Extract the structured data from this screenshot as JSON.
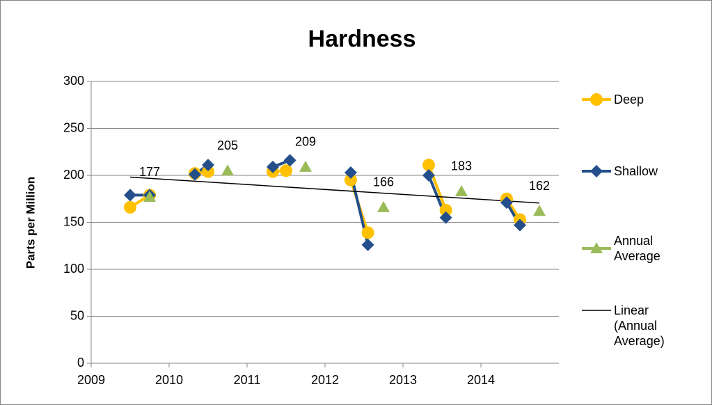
{
  "chart_data": {
    "type": "line",
    "title": "Hardness",
    "y_label": "Parts per Million",
    "xlim": [
      2009,
      2015
    ],
    "xticks": [
      2009,
      2010,
      2011,
      2012,
      2013,
      2014
    ],
    "ylim": [
      0,
      300
    ],
    "yticks": [
      0,
      50,
      100,
      150,
      200,
      250,
      300
    ],
    "grid": true,
    "series": [
      {
        "name": "Deep",
        "color": "#FFC000",
        "marker": "circle",
        "line": true,
        "x": [
          2009.5,
          2009.75,
          2010,
          2010.33,
          2010.5,
          2011,
          2011.33,
          2011.5,
          2012,
          2012.33,
          2012.55,
          2013,
          2013.33,
          2013.55,
          2014,
          2014.33,
          2014.5
        ],
        "values": [
          166,
          179,
          null,
          202,
          204,
          null,
          204,
          205,
          null,
          195,
          139,
          null,
          211,
          163,
          null,
          175,
          153
        ]
      },
      {
        "name": "Shallow",
        "color": "#244F8A",
        "marker": "diamond",
        "line": true,
        "x": [
          2009.5,
          2009.75,
          2010,
          2010.33,
          2010.5,
          2011,
          2011.33,
          2011.55,
          2012,
          2012.33,
          2012.55,
          2013,
          2013.33,
          2013.55,
          2014,
          2014.33,
          2014.5
        ],
        "values": [
          179,
          179,
          null,
          201,
          211,
          null,
          209,
          216,
          null,
          203,
          126,
          null,
          200,
          155,
          null,
          171,
          147
        ]
      },
      {
        "name": "Annual Average",
        "color": "#9BBB59",
        "marker": "triangle",
        "line": false,
        "data_labels": true,
        "x": [
          2009.75,
          2010.75,
          2011.75,
          2012.75,
          2013.75,
          2014.75
        ],
        "values": [
          177,
          205,
          209,
          166,
          183,
          162
        ]
      }
    ],
    "trendline": {
      "name": "Linear (Annual Average)",
      "type": "linear",
      "series": 2,
      "color": "#000000"
    }
  }
}
